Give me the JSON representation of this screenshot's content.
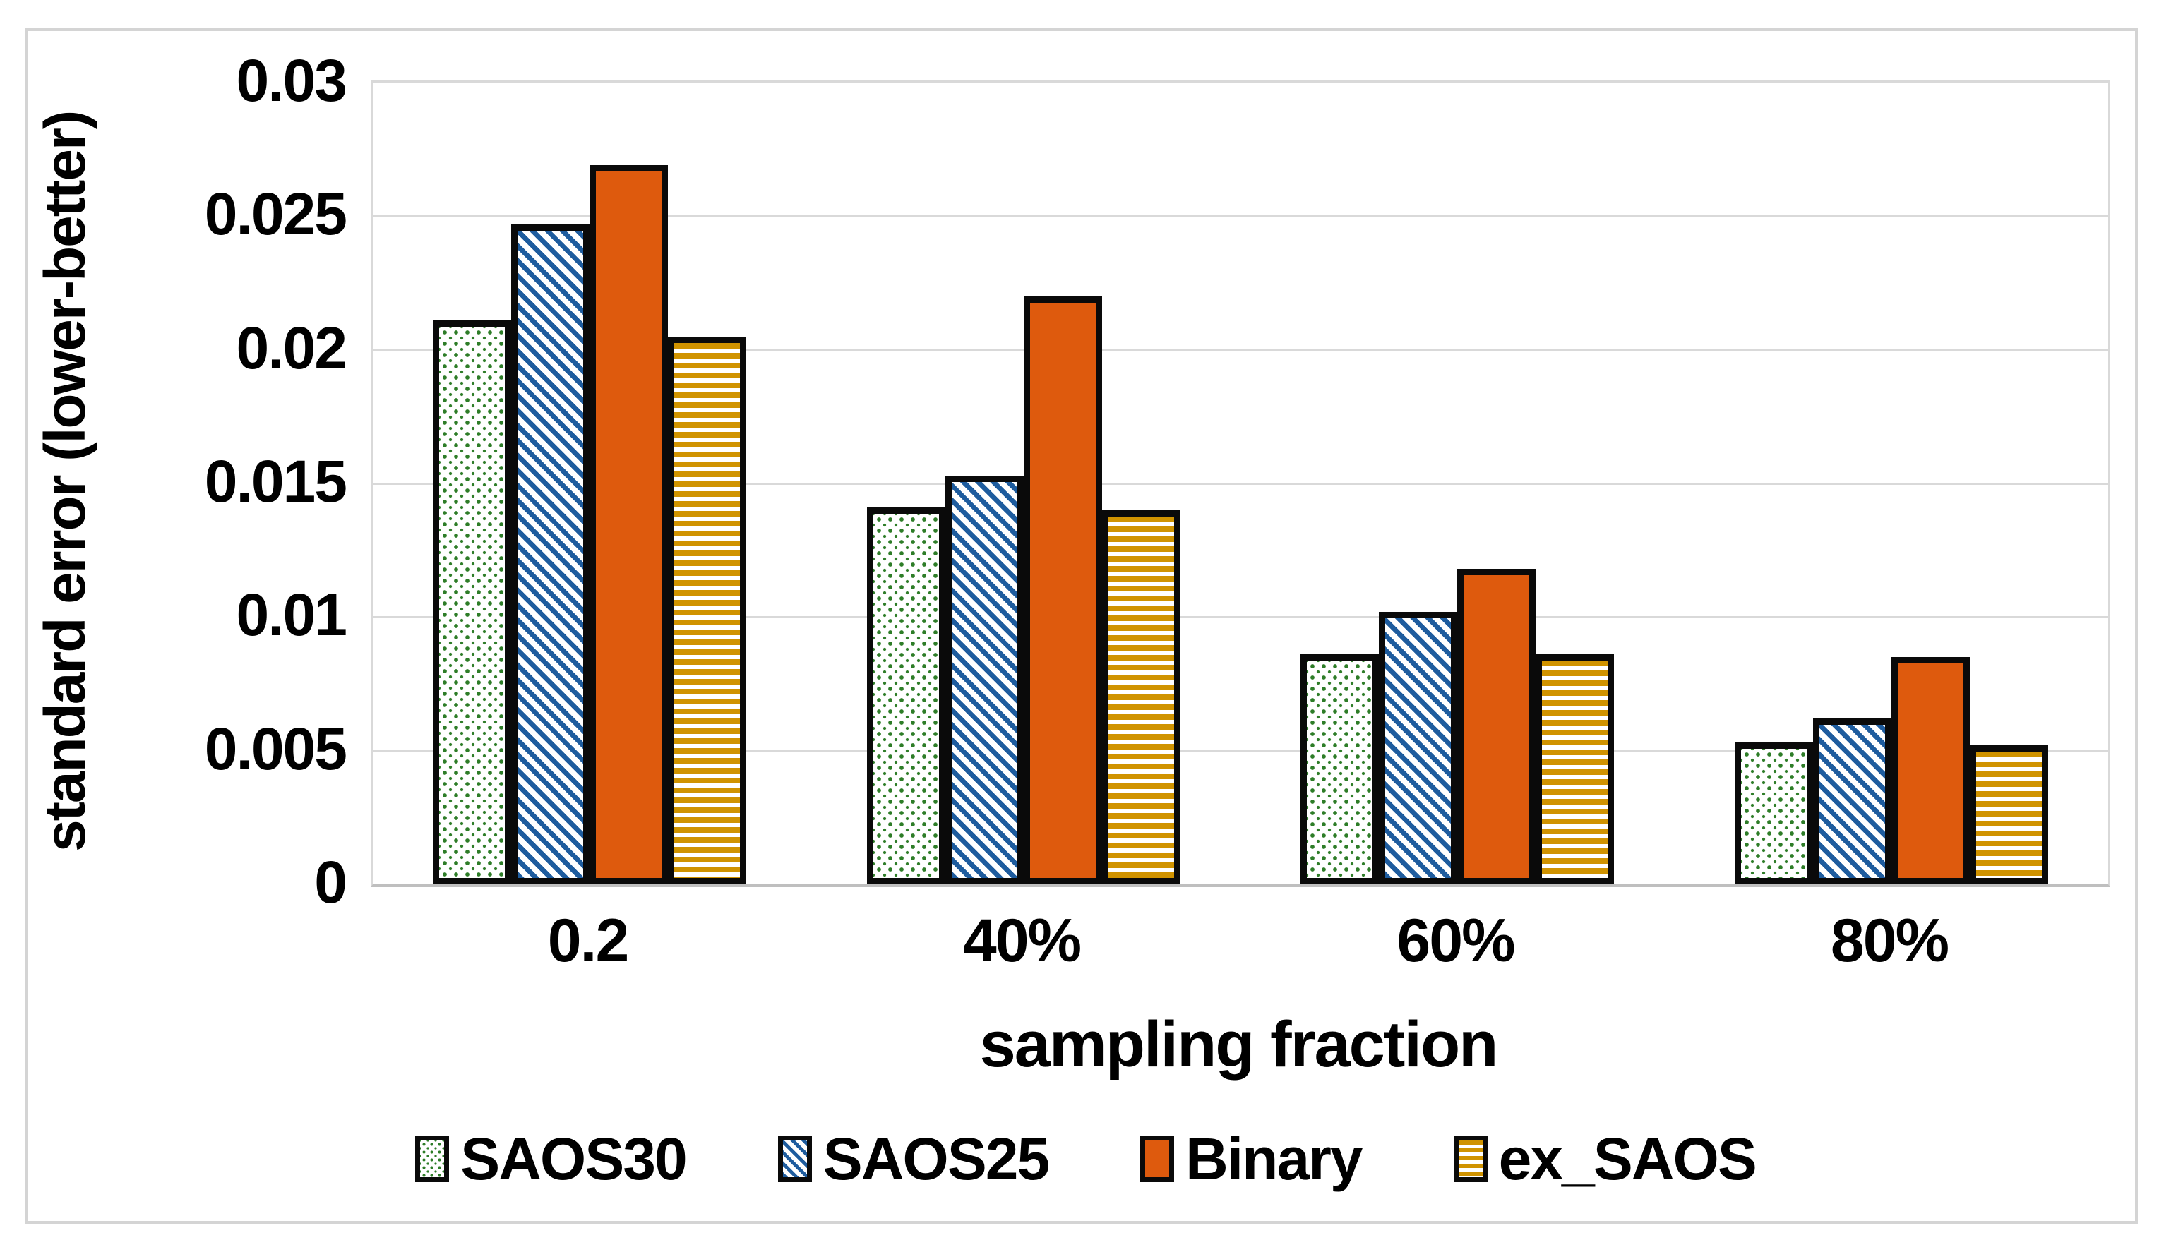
{
  "chart_data": {
    "type": "bar",
    "title": "",
    "xlabel": "sampling fraction",
    "ylabel": "standard error (lower-better)",
    "categories": [
      "0.2",
      "40%",
      "60%",
      "80%"
    ],
    "series": [
      {
        "name": "SAOS30",
        "pattern": "green-dots",
        "values": [
          0.0211,
          0.0141,
          0.0086,
          0.0053
        ]
      },
      {
        "name": "SAOS25",
        "pattern": "blue-diagonal-stripes",
        "values": [
          0.0247,
          0.0153,
          0.0102,
          0.0062
        ]
      },
      {
        "name": "Binary",
        "pattern": "solid-orange",
        "values": [
          0.0269,
          0.022,
          0.0118,
          0.0085
        ]
      },
      {
        "name": "ex_SAOS",
        "pattern": "gold-horizontal-stripes",
        "values": [
          0.0205,
          0.014,
          0.0086,
          0.0052
        ]
      }
    ],
    "ylim": [
      0,
      0.03
    ],
    "ytick_step": 0.005,
    "yticks": [
      "0.03",
      "0.025",
      "0.02",
      "0.015",
      "0.01",
      "0.005",
      "0"
    ],
    "grid": "horizontal",
    "legend_position": "bottom"
  },
  "colors": {
    "green": "#2e7d28",
    "blue": "#1e5c9e",
    "orange": "#de5a0d",
    "gold": "#d09300",
    "gridline": "#d9d9d9",
    "axis_line": "#bfbfbf",
    "bar_border": "#0a0a0a",
    "text": "#000000",
    "figure_border": "#d4d4d4"
  }
}
